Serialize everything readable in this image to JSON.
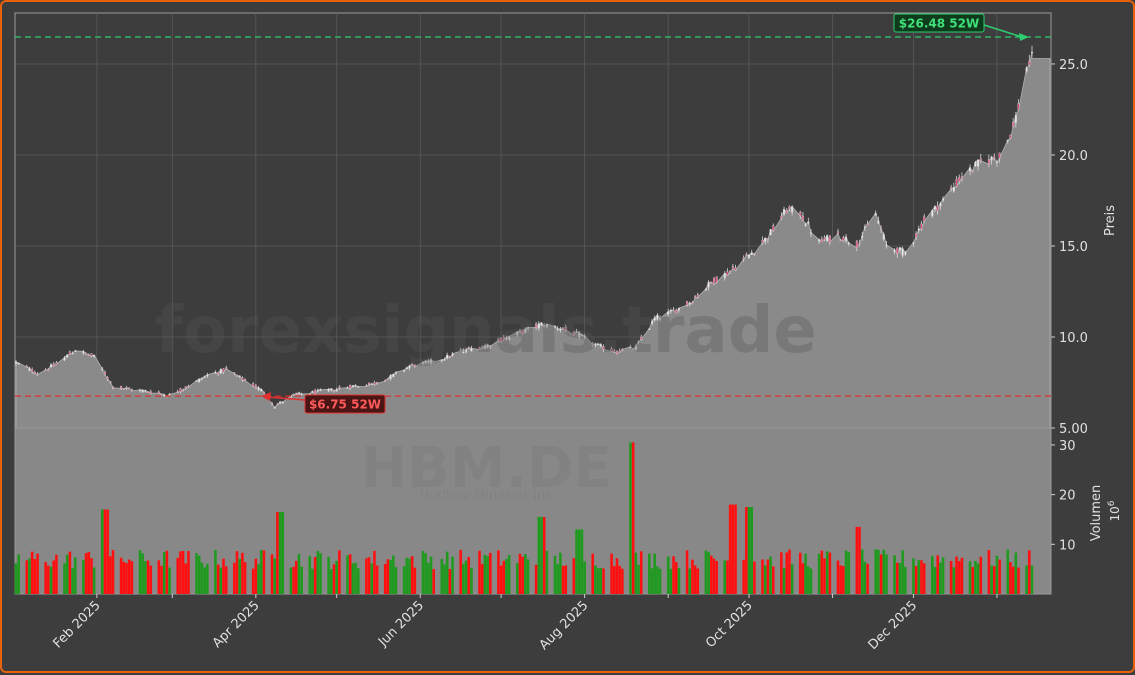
{
  "chart_data": {
    "type": "candlestick",
    "watermark": "forexsignals.trade",
    "ticker": "HBM.DE",
    "company": "Hudbay Minerals Inc",
    "price_panel": {
      "ylabel": "Preis",
      "ylim": [
        5.0,
        27.8
      ],
      "yticks": [
        "5.00",
        "10.0",
        "15.0",
        "20.0",
        "25.0"
      ],
      "ytick_values": [
        5,
        10,
        15,
        20,
        25
      ],
      "grid": true,
      "high_52w": {
        "value": 26.48,
        "label": "$26.48 52W",
        "color": "#2ecc71"
      },
      "low_52w": {
        "value": 6.75,
        "label": "$6.75 52W",
        "color": "#e03030"
      },
      "last_close": 25.3
    },
    "volume_panel": {
      "ylabel": "Volumen",
      "unit": "10^6",
      "unit_base": "10",
      "unit_exp": "6",
      "ylim": [
        0,
        33
      ],
      "yticks": [
        "10",
        "20",
        "30"
      ],
      "ytick_values": [
        10,
        20,
        30
      ]
    },
    "x_axis": {
      "ticks": [
        "Feb 2025",
        "Apr 2025",
        "Jun 2025",
        "Aug 2025",
        "Oct 2025",
        "Dec 2025"
      ],
      "date_range": [
        "2025-01-02",
        "2026-01-14"
      ]
    },
    "price_keypoints": [
      [
        "2025-01-02",
        8.6
      ],
      [
        "2025-01-10",
        8.0
      ],
      [
        "2025-01-17",
        8.5
      ],
      [
        "2025-01-24",
        9.3
      ],
      [
        "2025-01-31",
        8.9
      ],
      [
        "2025-02-07",
        7.3
      ],
      [
        "2025-02-14",
        7.1
      ],
      [
        "2025-02-21",
        7.0
      ],
      [
        "2025-02-28",
        6.8
      ],
      [
        "2025-03-07",
        7.3
      ],
      [
        "2025-03-14",
        7.9
      ],
      [
        "2025-03-21",
        8.2
      ],
      [
        "2025-03-28",
        7.6
      ],
      [
        "2025-04-04",
        7.0
      ],
      [
        "2025-04-08",
        6.2
      ],
      [
        "2025-04-15",
        6.8
      ],
      [
        "2025-04-22",
        6.95
      ],
      [
        "2025-04-30",
        7.1
      ],
      [
        "2025-05-07",
        7.3
      ],
      [
        "2025-05-14",
        7.4
      ],
      [
        "2025-05-21",
        7.8
      ],
      [
        "2025-05-28",
        8.4
      ],
      [
        "2025-06-04",
        8.6
      ],
      [
        "2025-06-11",
        8.9
      ],
      [
        "2025-06-18",
        9.3
      ],
      [
        "2025-06-25",
        9.5
      ],
      [
        "2025-07-02",
        9.9
      ],
      [
        "2025-07-09",
        10.3
      ],
      [
        "2025-07-16",
        10.7
      ],
      [
        "2025-07-23",
        10.5
      ],
      [
        "2025-07-30",
        10.1
      ],
      [
        "2025-08-06",
        9.5
      ],
      [
        "2025-08-13",
        9.2
      ],
      [
        "2025-08-20",
        9.4
      ],
      [
        "2025-08-27",
        11.0
      ],
      [
        "2025-09-03",
        11.4
      ],
      [
        "2025-09-10",
        12.0
      ],
      [
        "2025-09-17",
        13.0
      ],
      [
        "2025-09-24",
        13.6
      ],
      [
        "2025-10-01",
        14.5
      ],
      [
        "2025-10-08",
        15.5
      ],
      [
        "2025-10-15",
        17.0
      ],
      [
        "2025-10-20",
        16.8
      ],
      [
        "2025-10-27",
        15.2
      ],
      [
        "2025-11-03",
        15.6
      ],
      [
        "2025-11-10",
        15.1
      ],
      [
        "2025-11-17",
        16.8
      ],
      [
        "2025-11-21",
        15.0
      ],
      [
        "2025-11-28",
        14.6
      ],
      [
        "2025-12-05",
        16.4
      ],
      [
        "2025-12-12",
        17.5
      ],
      [
        "2025-12-19",
        18.8
      ],
      [
        "2025-12-26",
        19.6
      ],
      [
        "2026-01-02",
        19.9
      ],
      [
        "2026-01-07",
        21.5
      ],
      [
        "2026-01-10",
        23.2
      ],
      [
        "2026-01-12",
        24.8
      ],
      [
        "2026-01-14",
        25.3
      ]
    ],
    "volume_spikes": [
      [
        "2025-02-04",
        17
      ],
      [
        "2025-04-10",
        16.5
      ],
      [
        "2025-07-16",
        15.5
      ],
      [
        "2025-07-30",
        13
      ],
      [
        "2025-08-18",
        30.5
      ],
      [
        "2025-09-25",
        18
      ],
      [
        "2025-10-01",
        17.5
      ],
      [
        "2025-11-10",
        13.5
      ]
    ],
    "colors": {
      "up": "#1f9a1f",
      "down": "#ff1010",
      "area": "#8a8a8a",
      "background": "#3d3d3d",
      "border": "#e8620c"
    }
  }
}
